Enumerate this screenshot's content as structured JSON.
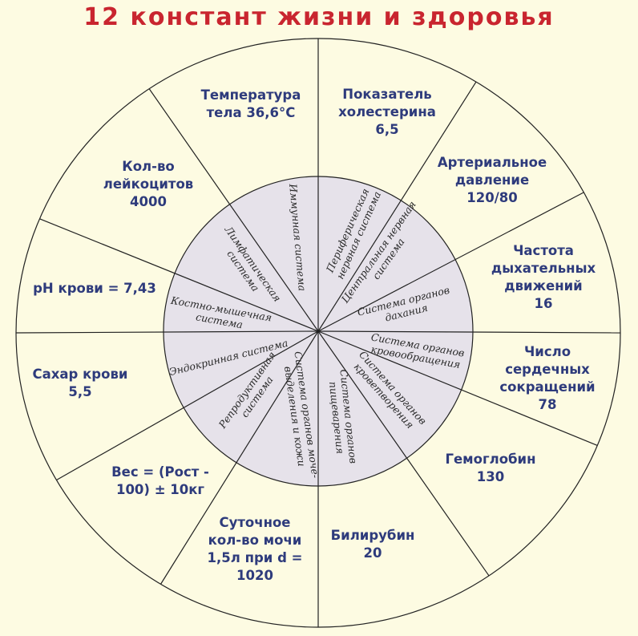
{
  "title": "12 констант жизни и здоровья",
  "colors": {
    "background": "#fdfbe2",
    "inner_circle": "#e6e2ea",
    "title": "#c9252f",
    "outer_text": "#2e3b7c",
    "lines": "#222222"
  },
  "constants": [
    {
      "lines": [
        "Температура",
        "тела 36,6°C"
      ]
    },
    {
      "lines": [
        "Показатель",
        "холестерина",
        "6,5"
      ]
    },
    {
      "lines": [
        "Артериальное",
        "давление",
        "120/80"
      ]
    },
    {
      "lines": [
        "Частота",
        "дыхательных",
        "движений",
        "16"
      ]
    },
    {
      "lines": [
        "Число",
        "сердечных",
        "сокращений",
        "78"
      ]
    },
    {
      "lines": [
        "Гемоглобин",
        "130"
      ]
    },
    {
      "lines": [
        "Билирубин",
        "20"
      ]
    },
    {
      "lines": [
        "Суточное",
        "кол-во мочи",
        "1,5л при d =",
        "1020"
      ]
    },
    {
      "lines": [
        "Вес = (Рост -",
        "100) ± 10кг"
      ]
    },
    {
      "lines": [
        "Сахар крови",
        "5,5"
      ]
    },
    {
      "lines": [
        "pH крови = 7,43"
      ]
    },
    {
      "lines": [
        "Кол-во",
        "лейкоцитов",
        "4000"
      ]
    }
  ],
  "systems": [
    {
      "lines": [
        "Иммунная система"
      ]
    },
    {
      "lines": [
        "Лимфатическая",
        "система"
      ]
    },
    {
      "lines": [
        "Периферическая",
        "нервная система"
      ]
    },
    {
      "lines": [
        "Центральная нервная",
        "система"
      ]
    },
    {
      "lines": [
        "Система органов",
        "дахания"
      ]
    },
    {
      "lines": [
        "Костно-мышечная",
        "система"
      ]
    },
    {
      "lines": [
        "Эндокринная система"
      ]
    },
    {
      "lines": [
        "Репродуктивная",
        "система"
      ]
    },
    {
      "lines": [
        "Система органов моче-",
        "выделения и кожи"
      ]
    },
    {
      "lines": [
        "Система органов",
        "пищеварения"
      ]
    },
    {
      "lines": [
        "Система органов",
        "кроветворения"
      ]
    },
    {
      "lines": [
        "Система органов",
        "кровообращения"
      ]
    }
  ]
}
